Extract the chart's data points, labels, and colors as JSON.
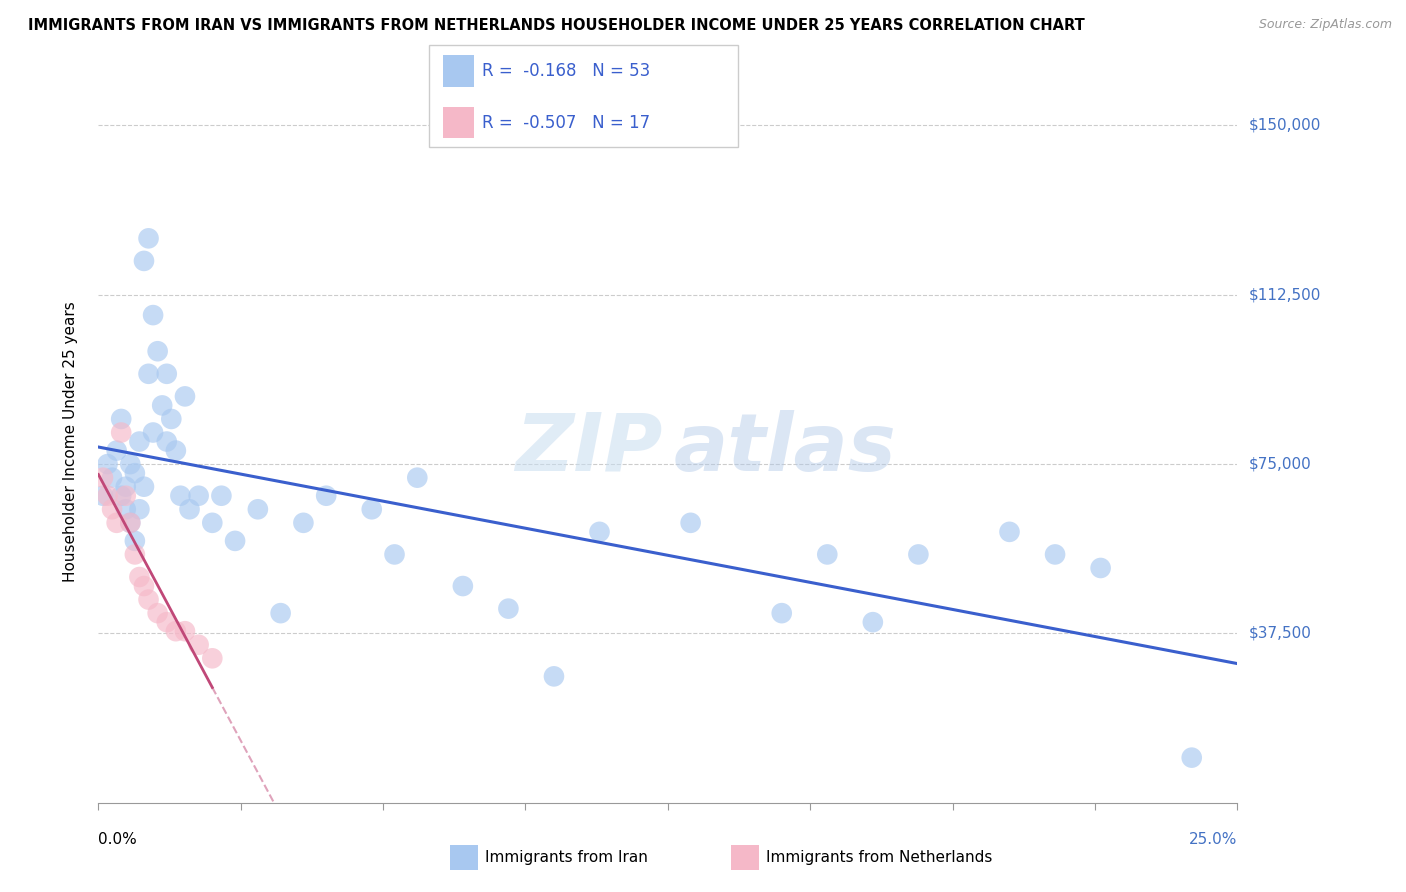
{
  "title": "IMMIGRANTS FROM IRAN VS IMMIGRANTS FROM NETHERLANDS HOUSEHOLDER INCOME UNDER 25 YEARS CORRELATION CHART",
  "source": "Source: ZipAtlas.com",
  "ylabel": "Householder Income Under 25 years",
  "ytick_labels": [
    "$37,500",
    "$75,000",
    "$112,500",
    "$150,000"
  ],
  "ytick_values": [
    37500,
    75000,
    112500,
    150000
  ],
  "xmin": 0.0,
  "xmax": 0.25,
  "ymin": 0,
  "ymax": 160000,
  "iran_R": -0.168,
  "iran_N": 53,
  "netherlands_R": -0.507,
  "netherlands_N": 17,
  "iran_color": "#a8c8f0",
  "netherlands_color": "#f5b8c8",
  "iran_line_color": "#3a5fcd",
  "netherlands_line_color": "#c04878",
  "watermark_zip": "ZIP",
  "watermark_atlas": "atlas",
  "iran_scatter_x": [
    0.001,
    0.002,
    0.003,
    0.004,
    0.005,
    0.005,
    0.006,
    0.006,
    0.007,
    0.007,
    0.008,
    0.008,
    0.009,
    0.009,
    0.01,
    0.01,
    0.011,
    0.011,
    0.012,
    0.012,
    0.013,
    0.014,
    0.015,
    0.015,
    0.016,
    0.017,
    0.018,
    0.019,
    0.02,
    0.022,
    0.025,
    0.027,
    0.03,
    0.035,
    0.04,
    0.045,
    0.05,
    0.06,
    0.065,
    0.07,
    0.08,
    0.09,
    0.1,
    0.11,
    0.13,
    0.15,
    0.16,
    0.17,
    0.18,
    0.2,
    0.21,
    0.22,
    0.24
  ],
  "iran_scatter_y": [
    68000,
    75000,
    72000,
    78000,
    85000,
    68000,
    70000,
    65000,
    75000,
    62000,
    73000,
    58000,
    80000,
    65000,
    120000,
    70000,
    125000,
    95000,
    108000,
    82000,
    100000,
    88000,
    95000,
    80000,
    85000,
    78000,
    68000,
    90000,
    65000,
    68000,
    62000,
    68000,
    58000,
    65000,
    42000,
    62000,
    68000,
    65000,
    55000,
    72000,
    48000,
    43000,
    28000,
    60000,
    62000,
    42000,
    55000,
    40000,
    55000,
    60000,
    55000,
    52000,
    10000
  ],
  "netherlands_scatter_x": [
    0.001,
    0.002,
    0.003,
    0.004,
    0.005,
    0.006,
    0.007,
    0.008,
    0.009,
    0.01,
    0.011,
    0.013,
    0.015,
    0.017,
    0.019,
    0.022,
    0.025
  ],
  "netherlands_scatter_y": [
    72000,
    68000,
    65000,
    62000,
    82000,
    68000,
    62000,
    55000,
    50000,
    48000,
    45000,
    42000,
    40000,
    38000,
    38000,
    35000,
    32000
  ],
  "xtick_positions": [
    0.0,
    0.03125,
    0.0625,
    0.09375,
    0.125,
    0.15625,
    0.1875,
    0.21875,
    0.25
  ]
}
